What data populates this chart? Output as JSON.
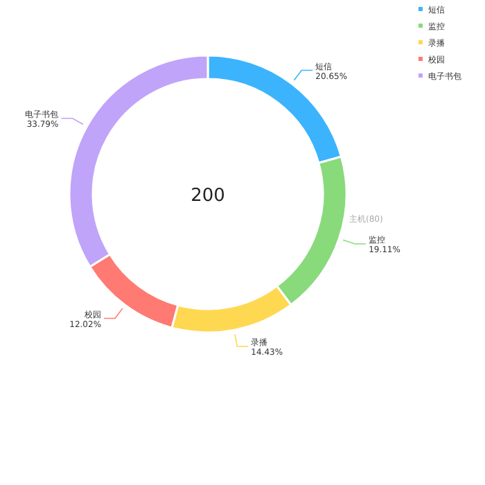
{
  "chart_data": {
    "type": "donut",
    "categories": [
      "短信",
      "监控",
      "录播",
      "校园",
      "电子书包"
    ],
    "values": [
      20.65,
      19.11,
      14.43,
      12.02,
      33.79
    ],
    "colors": [
      "#3bb4fd",
      "#88da7b",
      "#ffd852",
      "#ff7a72",
      "#c0a4f9"
    ],
    "value_labels": [
      "20.65%",
      "19.11%",
      "14.43%",
      "12.02%",
      "33.79%"
    ],
    "legend": "top right",
    "annotations": [
      "200",
      "主机(80)"
    ]
  }
}
